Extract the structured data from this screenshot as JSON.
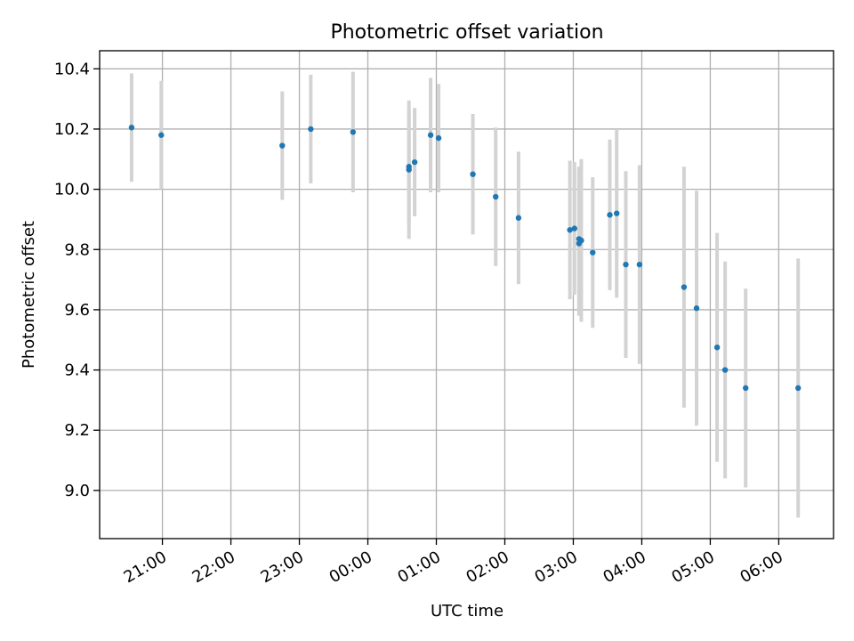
{
  "chart_data": {
    "type": "scatter",
    "title": "Photometric offset variation",
    "xlabel": "UTC time",
    "ylabel": "Photometric offset",
    "xlim": [
      "20:05",
      "06:48"
    ],
    "ylim": [
      8.84,
      10.46
    ],
    "xticks": [
      "21:00",
      "22:00",
      "23:00",
      "00:00",
      "01:00",
      "02:00",
      "03:00",
      "04:00",
      "05:00",
      "06:00"
    ],
    "yticks": [
      "9.0",
      "9.2",
      "9.4",
      "9.6",
      "9.8",
      "10.0",
      "10.2",
      "10.4"
    ],
    "grid": true,
    "colors": {
      "point": "#1f77b4",
      "errorbar": "#d3d3d3",
      "grid": "#b0b0b0"
    },
    "series": [
      {
        "x": [
          "20:33",
          "20:59",
          "22:45",
          "23:10",
          "23:47",
          "00:36",
          "00:36",
          "00:41",
          "00:55",
          "01:02",
          "01:32",
          "01:52",
          "02:12",
          "02:57",
          "03:01",
          "03:05",
          "03:05",
          "03:07",
          "03:17",
          "03:32",
          "03:38",
          "03:46",
          "03:58",
          "04:37",
          "04:48",
          "05:06",
          "05:13",
          "05:31",
          "06:17"
        ],
        "y": [
          10.205,
          10.18,
          10.145,
          10.2,
          10.19,
          10.065,
          10.075,
          10.09,
          10.18,
          10.17,
          10.05,
          9.975,
          9.905,
          9.865,
          9.87,
          9.835,
          9.82,
          9.83,
          9.79,
          9.915,
          9.92,
          9.75,
          9.75,
          9.675,
          9.605,
          9.475,
          9.4,
          9.34,
          9.34
        ],
        "err": [
          0.18,
          0.18,
          0.18,
          0.18,
          0.2,
          0.23,
          0.19,
          0.18,
          0.19,
          0.18,
          0.2,
          0.23,
          0.22,
          0.23,
          0.22,
          0.24,
          0.24,
          0.27,
          0.25,
          0.25,
          0.28,
          0.31,
          0.33,
          0.4,
          0.39,
          0.38,
          0.36,
          0.33,
          0.43
        ]
      }
    ]
  }
}
